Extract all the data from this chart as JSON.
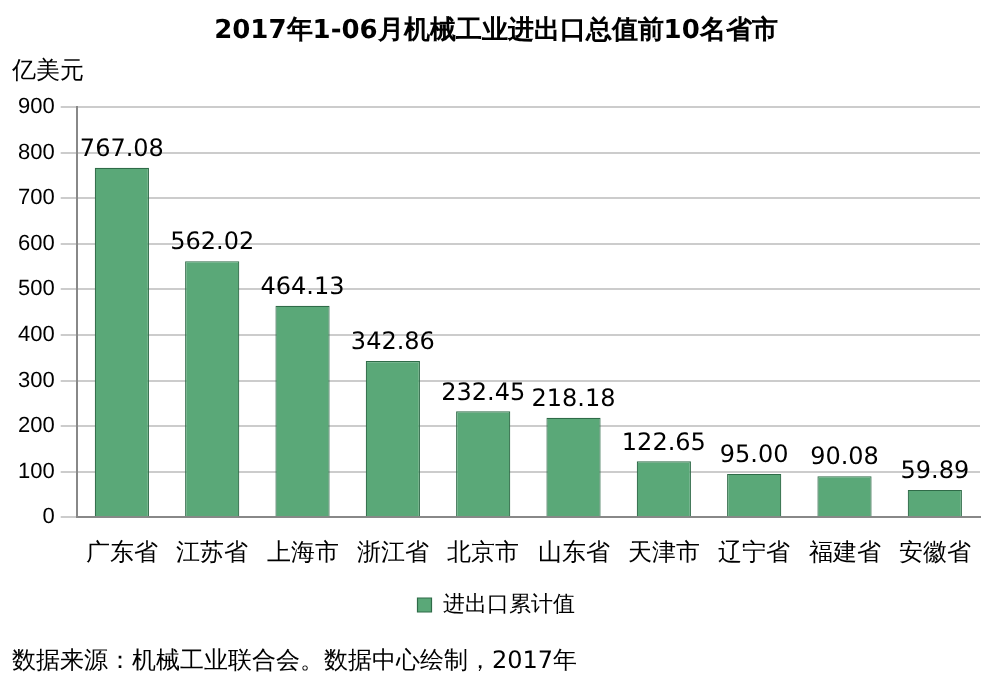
{
  "chart_data": {
    "type": "bar",
    "title": "2017年1-06月机械工业进出口总值前10名省市",
    "ylabel": "亿美元",
    "categories": [
      "广东省",
      "江苏省",
      "上海市",
      "浙江省",
      "北京市",
      "山东省",
      "天津市",
      "辽宁省",
      "福建省",
      "安徽省"
    ],
    "series": [
      {
        "name": "进出口累计值",
        "color": "#5aa878",
        "values": [
          767.08,
          562.02,
          464.13,
          342.86,
          232.45,
          218.18,
          122.65,
          95.0,
          90.08,
          59.89
        ]
      }
    ],
    "value_labels": [
      "767.08",
      "562.02",
      "464.13",
      "342.86",
      "232.45",
      "218.18",
      "122.65",
      "95.00",
      "90.08",
      "59.89"
    ],
    "ylim": [
      0,
      900
    ],
    "yticks": [
      0,
      100,
      200,
      300,
      400,
      500,
      600,
      700,
      800,
      900
    ],
    "grid": "y",
    "legend": "bottom",
    "annotations": [
      "数据来源：机械工业联合会。数据中心绘制，2017年"
    ]
  }
}
